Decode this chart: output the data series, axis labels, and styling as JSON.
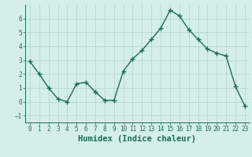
{
  "x": [
    0,
    1,
    2,
    3,
    4,
    5,
    6,
    7,
    8,
    9,
    10,
    11,
    12,
    13,
    14,
    15,
    16,
    17,
    18,
    19,
    20,
    21,
    22,
    23
  ],
  "y": [
    2.9,
    2.0,
    1.0,
    0.2,
    0.0,
    1.3,
    1.4,
    0.7,
    0.1,
    0.1,
    2.2,
    3.1,
    3.7,
    4.5,
    5.3,
    6.6,
    6.2,
    5.2,
    4.5,
    3.8,
    3.5,
    3.3,
    1.1,
    -0.3
  ],
  "line_color": "#1a6b5a",
  "bg_color": "#d5eeea",
  "grid_color": "#aed4cc",
  "xlabel": "Humidex (Indice chaleur)",
  "ylim": [
    -1.5,
    7.0
  ],
  "xlim": [
    -0.5,
    23.5
  ],
  "yticks": [
    -1,
    0,
    1,
    2,
    3,
    4,
    5,
    6
  ],
  "xticks": [
    0,
    1,
    2,
    3,
    4,
    5,
    6,
    7,
    8,
    9,
    10,
    11,
    12,
    13,
    14,
    15,
    16,
    17,
    18,
    19,
    20,
    21,
    22,
    23
  ],
  "tick_fontsize": 5.5,
  "xlabel_fontsize": 7.5,
  "marker_size": 4,
  "line_width": 1.0
}
